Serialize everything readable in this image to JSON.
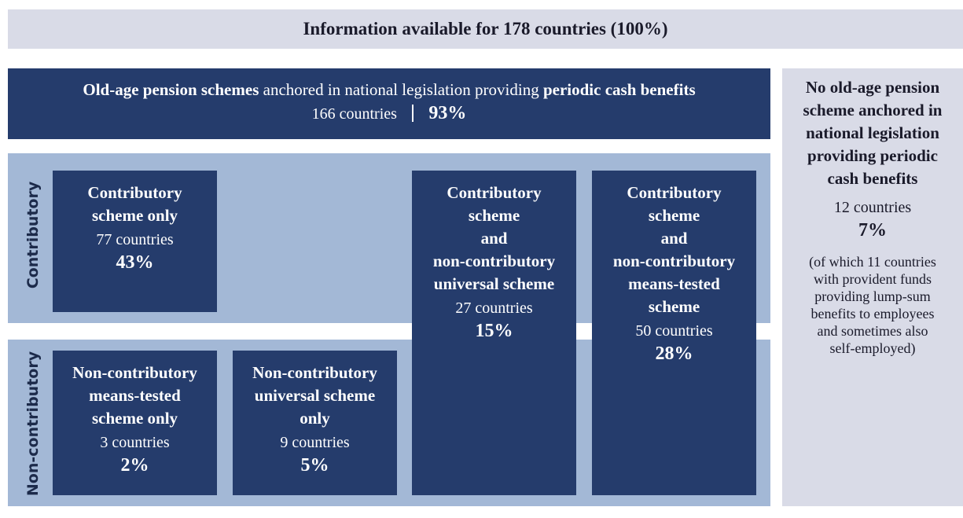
{
  "header": {
    "title": "Information available for 178 countries (100%)"
  },
  "main": {
    "title_parts": [
      "Old-age pension schemes",
      " anchored in national legislation providing ",
      "periodic cash benefits"
    ],
    "countries": "166 countries",
    "percent": "93%"
  },
  "groups": [
    "Contributory",
    "Non-contributory"
  ],
  "boxes": [
    {
      "lines": [
        "Contributory",
        "scheme only"
      ],
      "countries": "77 countries",
      "percent": "43%"
    },
    {
      "lines": [
        "Non-contributory",
        "means-tested",
        "scheme only"
      ],
      "countries": "3 countries",
      "percent": "2%"
    },
    {
      "lines": [
        "Non-contributory",
        "universal scheme",
        "only"
      ],
      "countries": "9 countries",
      "percent": "5%"
    },
    {
      "lines": [
        "Contributory",
        "scheme",
        "and",
        "non-contributory",
        "universal scheme"
      ],
      "countries": "27 countries",
      "percent": "15%"
    },
    {
      "lines": [
        "Contributory",
        "scheme",
        "and",
        "non-contributory",
        "means-tested",
        "scheme"
      ],
      "countries": "50 countries",
      "percent": "28%"
    }
  ],
  "side": {
    "lines": [
      "No old-age pension",
      "scheme anchored in",
      "national legislation",
      "providing periodic",
      "cash benefits"
    ],
    "countries": "12 countries",
    "percent": "7%",
    "note": [
      "(of which 11 countries",
      "with provident funds",
      "providing lump-sum",
      "benefits to employees",
      "and sometimes also",
      "self-employed)"
    ]
  }
}
